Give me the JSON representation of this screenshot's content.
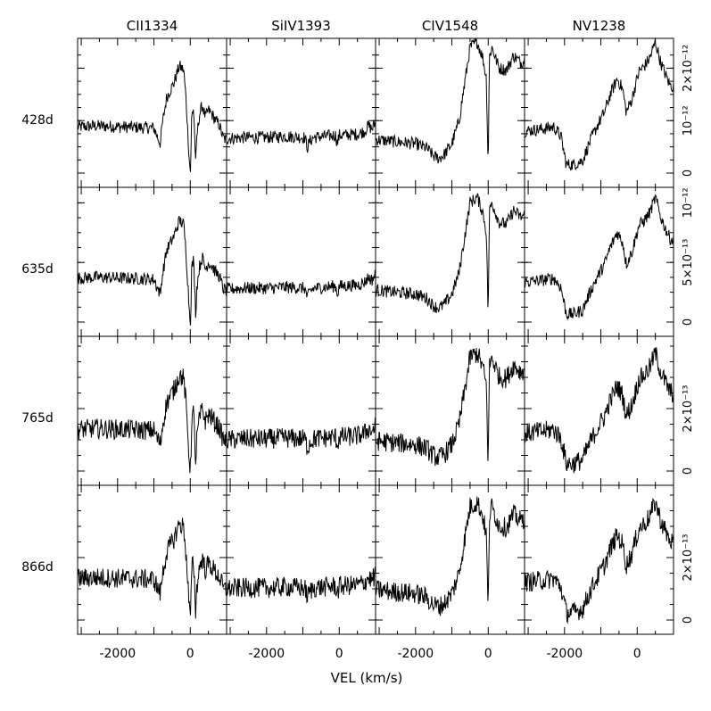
{
  "chart_data": {
    "type": "line",
    "layout": "grid of 4 rows × 4 columns of spectral line profiles, shared x axis",
    "xlabel": "VEL (km/s)",
    "xlim": [
      -3100,
      1000
    ],
    "x_ticks": [
      -2000,
      0
    ],
    "x_tick_labels": [
      "-2000",
      "0"
    ],
    "columns": [
      "CII1334",
      "SiIV1393",
      "CIV1548",
      "NV1238"
    ],
    "rows": [
      {
        "label": "428d",
        "ylim": [
          0,
          2.5e-12
        ],
        "yticks": [
          0,
          1e-12,
          2e-12
        ],
        "ytick_labels": [
          "0",
          "10⁻¹²",
          "2×10⁻¹²"
        ]
      },
      {
        "label": "635d",
        "ylim": [
          0,
          1.1e-12
        ],
        "yticks": [
          0,
          5e-13,
          1e-12
        ],
        "ytick_labels": [
          "0",
          "5×10⁻¹³",
          "10⁻¹²"
        ]
      },
      {
        "label": "765d",
        "ylim": [
          0,
          4.2e-13
        ],
        "yticks": [
          0,
          2e-13
        ],
        "ytick_labels": [
          "0",
          "2×10⁻¹³"
        ]
      },
      {
        "label": "866d",
        "ylim": [
          0,
          4.2e-13
        ],
        "yticks": [
          0,
          2e-13
        ],
        "ytick_labels": [
          "0",
          "2×10⁻¹³"
        ]
      }
    ],
    "profiles": {
      "CII1334": [
        [
          -3100,
          0.44
        ],
        [
          -2600,
          0.45
        ],
        [
          -1800,
          0.44
        ],
        [
          -1000,
          0.43
        ],
        [
          -900,
          0.34
        ],
        [
          -820,
          0.28
        ],
        [
          -780,
          0.44
        ],
        [
          -650,
          0.72
        ],
        [
          -450,
          0.86
        ],
        [
          -300,
          1.02
        ],
        [
          -180,
          0.98
        ],
        [
          -120,
          0.72
        ],
        [
          -60,
          0.35
        ],
        [
          -20,
          0.08
        ],
        [
          10,
          0.02
        ],
        [
          40,
          0.55
        ],
        [
          90,
          0.62
        ],
        [
          120,
          0.38
        ],
        [
          150,
          0.07
        ],
        [
          180,
          0.34
        ],
        [
          250,
          0.55
        ],
        [
          330,
          0.65
        ],
        [
          420,
          0.53
        ],
        [
          500,
          0.6
        ],
        [
          600,
          0.56
        ],
        [
          700,
          0.5
        ],
        [
          800,
          0.46
        ],
        [
          900,
          0.34
        ],
        [
          1000,
          0.31
        ]
      ],
      "SiIV1393": [
        [
          -3100,
          0.33
        ],
        [
          -2600,
          0.34
        ],
        [
          -2000,
          0.34
        ],
        [
          -1500,
          0.35
        ],
        [
          -950,
          0.34
        ],
        [
          -870,
          0.24
        ],
        [
          -820,
          0.3
        ],
        [
          -700,
          0.34
        ],
        [
          -100,
          0.36
        ],
        [
          -50,
          0.28
        ],
        [
          0,
          0.36
        ],
        [
          500,
          0.37
        ],
        [
          700,
          0.4
        ],
        [
          800,
          0.45
        ],
        [
          900,
          0.42
        ],
        [
          1000,
          0.48
        ]
      ],
      "CIV1548": [
        [
          -3100,
          0.32
        ],
        [
          -2600,
          0.3
        ],
        [
          -2000,
          0.28
        ],
        [
          -1700,
          0.24
        ],
        [
          -1500,
          0.16
        ],
        [
          -1350,
          0.14
        ],
        [
          -1200,
          0.18
        ],
        [
          -1000,
          0.28
        ],
        [
          -800,
          0.5
        ],
        [
          -650,
          0.85
        ],
        [
          -500,
          1.2
        ],
        [
          -300,
          1.25
        ],
        [
          -150,
          1.1
        ],
        [
          -50,
          0.9
        ],
        [
          0,
          0.02
        ],
        [
          30,
          1.1
        ],
        [
          100,
          1.2
        ],
        [
          300,
          1.0
        ],
        [
          500,
          0.98
        ],
        [
          700,
          1.12
        ],
        [
          900,
          1.05
        ],
        [
          1000,
          1.08
        ]
      ],
      "NV1238": [
        [
          -3100,
          0.4
        ],
        [
          -2600,
          0.42
        ],
        [
          -2300,
          0.44
        ],
        [
          -2100,
          0.35
        ],
        [
          -1950,
          0.08
        ],
        [
          -1750,
          0.08
        ],
        [
          -1500,
          0.12
        ],
        [
          -1300,
          0.3
        ],
        [
          -1100,
          0.45
        ],
        [
          -900,
          0.58
        ],
        [
          -750,
          0.74
        ],
        [
          -550,
          0.9
        ],
        [
          -400,
          0.8
        ],
        [
          -300,
          0.58
        ],
        [
          -150,
          0.7
        ],
        [
          50,
          0.97
        ],
        [
          200,
          1.02
        ],
        [
          350,
          1.1
        ],
        [
          500,
          1.25
        ],
        [
          650,
          1.05
        ],
        [
          800,
          0.92
        ],
        [
          900,
          0.84
        ],
        [
          1000,
          0.82
        ]
      ]
    }
  }
}
